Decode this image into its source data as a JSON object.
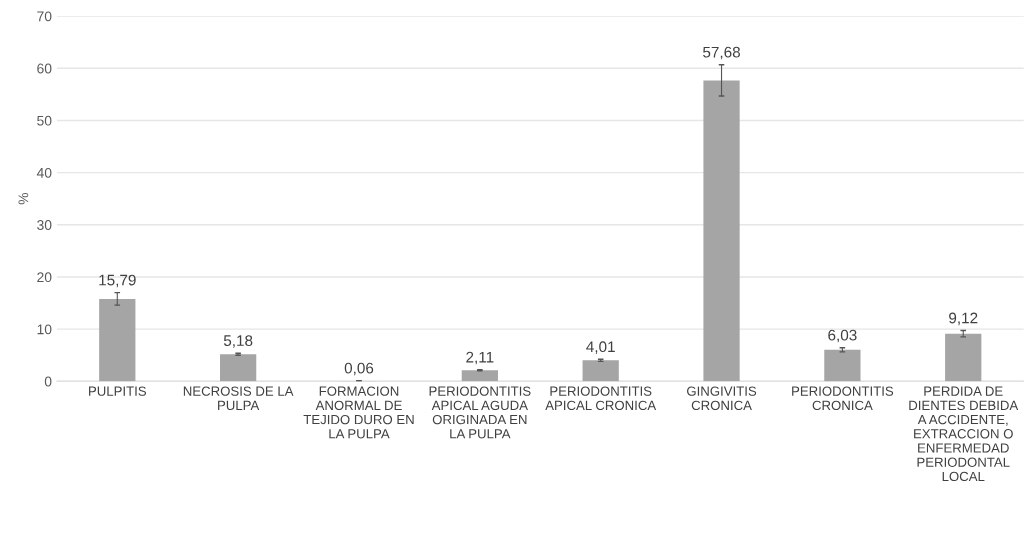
{
  "chart_data": {
    "type": "bar",
    "ylabel": "%",
    "categories": [
      "PULPITIS",
      "NECROSIS DE LA\nPULPA",
      "FORMACION\nANORMAL DE\nTEJIDO DURO EN\nLA PULPA",
      "PERIODONTITIS\nAPICAL AGUDA\nORIGINADA EN\nLA PULPA",
      "PERIODONTITIS\nAPICAL CRONICA",
      "GINGIVITIS\nCRONICA",
      "PERIODONTITIS\nCRONICA",
      "PERDIDA DE\nDIENTES DEBIDA\nA ACCIDENTE,\nEXTRACCION O\nENFERMEDAD\nPERIODONTAL\nLOCAL"
    ],
    "values": [
      15.79,
      5.18,
      0.06,
      2.11,
      4.01,
      57.68,
      6.03,
      9.12
    ],
    "value_labels": [
      "15,79",
      "5,18",
      "0,06",
      "2,11",
      "4,01",
      "57,68",
      "6,03",
      "9,12"
    ],
    "errors": [
      1.2,
      0.2,
      0.05,
      0.1,
      0.2,
      3,
      0.4,
      0.6
    ],
    "color": "#a5a5a5",
    "ylim": [
      0,
      70
    ],
    "yticks": [
      0,
      10,
      20,
      30,
      40,
      50,
      60,
      70
    ],
    "grid": "y"
  }
}
